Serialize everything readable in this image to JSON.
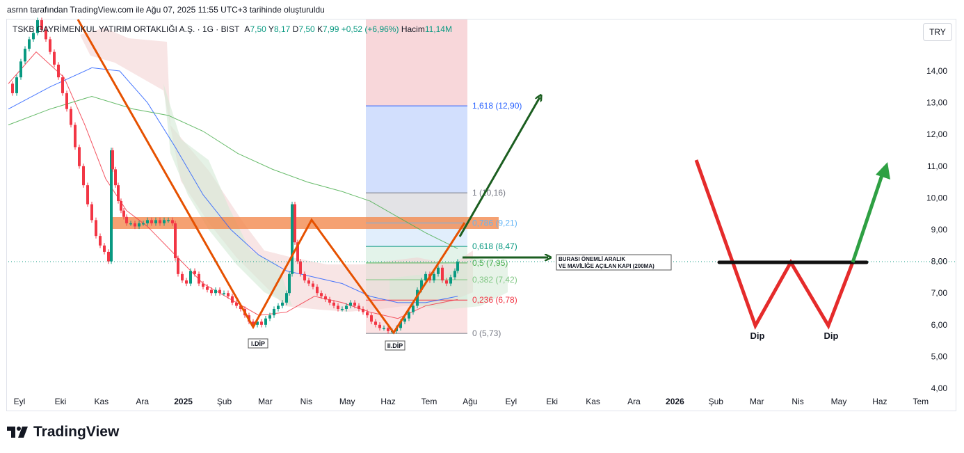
{
  "caption": "asrnn tarafından TradingView.com ile Ağu 07, 2025 11:55 UTC+3 tarihinde oluşturuldu",
  "symbol": {
    "name": "TSKB GAYRİMENKUL YATIRIM ORTAKLIĞI A.Ş. · 1G · BIST",
    "open_label": "A",
    "open": "7,50",
    "high_label": "Y",
    "high": "8,17",
    "low_label": "D",
    "low": "7,50",
    "close_label": "K",
    "close": "7,99",
    "change": "+0,52 (+6,96%)",
    "volume_label": "Hacim",
    "volume": "11,14M"
  },
  "currency": "TRY",
  "logo_text": "TradingView",
  "chart_data": {
    "type": "line",
    "y_axis": {
      "ticks": [
        "14,00",
        "13,00",
        "12,00",
        "11,00",
        "10,00",
        "9,00",
        "8,00",
        "7,00",
        "6,00",
        "5,00",
        "4,00"
      ],
      "tick_values": [
        14,
        13,
        12,
        11,
        10,
        9,
        8,
        7,
        6,
        5,
        4
      ],
      "position": "right"
    },
    "x_axis": {
      "ticks": [
        "Eyl",
        "Eki",
        "Kas",
        "Ara",
        "2025",
        "Şub",
        "Mar",
        "Nis",
        "May",
        "Haz",
        "Tem",
        "Ağu",
        "Eyl",
        "Eki",
        "Kas",
        "Ara",
        "2026",
        "Şub",
        "Mar",
        "Nis",
        "May",
        "Haz",
        "Tem"
      ],
      "bold": [
        "2025",
        "2026"
      ]
    },
    "last_price": 7.99,
    "fibonacci": [
      {
        "label": "1,618 (12,90)",
        "value": 12.9,
        "color": "#2962ff"
      },
      {
        "label": "1 (10,16)",
        "value": 10.16,
        "color": "#787b86"
      },
      {
        "label": "0,786 (9,21)",
        "value": 9.21,
        "color": "#64b5f6"
      },
      {
        "label": "0,618 (8,47)",
        "value": 8.47,
        "color": "#089981"
      },
      {
        "label": "0,5 (7,95)",
        "value": 7.95,
        "color": "#4caf50"
      },
      {
        "label": "0,382 (7,42)",
        "value": 7.42,
        "color": "#81c784"
      },
      {
        "label": "0,236 (6,78)",
        "value": 6.78,
        "color": "#f23645"
      },
      {
        "label": "0 (5,73)",
        "value": 5.73,
        "color": "#787b86"
      }
    ],
    "resistance_zone": {
      "from": 9.1,
      "to": 9.4,
      "color": "#f28a4f"
    },
    "annotations": {
      "first_bottom": "I.DİP",
      "second_bottom": "II.DİP",
      "note_line1": "BURASI ÖNEMLİ ARALIK",
      "note_line2": "VE MAVİLİĞE AÇILAN KAPI (200MA)",
      "w_dip1": "Dip",
      "w_dip2": "Dip"
    },
    "price_path": [
      [
        0,
        13.6
      ],
      [
        6,
        13.3
      ],
      [
        12,
        13.8
      ],
      [
        18,
        14.3
      ],
      [
        24,
        14.7
      ],
      [
        30,
        15.0
      ],
      [
        36,
        15.2
      ],
      [
        42,
        15.6
      ],
      [
        48,
        15.3
      ],
      [
        54,
        15.0
      ],
      [
        60,
        14.6
      ],
      [
        66,
        14.2
      ],
      [
        72,
        13.8
      ],
      [
        78,
        13.3
      ],
      [
        84,
        12.8
      ],
      [
        90,
        12.3
      ],
      [
        96,
        11.6
      ],
      [
        102,
        11.0
      ],
      [
        108,
        10.4
      ],
      [
        114,
        9.8
      ],
      [
        120,
        9.3
      ],
      [
        126,
        8.8
      ],
      [
        132,
        8.5
      ],
      [
        138,
        8.3
      ],
      [
        144,
        8.0
      ],
      [
        148,
        11.5
      ],
      [
        150,
        10.9
      ],
      [
        154,
        10.4
      ],
      [
        158,
        9.9
      ],
      [
        162,
        9.6
      ],
      [
        166,
        9.4
      ],
      [
        170,
        9.2
      ],
      [
        176,
        9.2
      ],
      [
        182,
        9.1
      ],
      [
        188,
        9.2
      ],
      [
        194,
        9.2
      ],
      [
        200,
        9.3
      ],
      [
        206,
        9.2
      ],
      [
        212,
        9.3
      ],
      [
        218,
        9.2
      ],
      [
        224,
        9.3
      ],
      [
        230,
        9.3
      ],
      [
        236,
        9.2
      ],
      [
        240,
        8.1
      ],
      [
        244,
        7.6
      ],
      [
        250,
        7.4
      ],
      [
        256,
        7.3
      ],
      [
        262,
        7.7
      ],
      [
        268,
        7.6
      ],
      [
        274,
        7.3
      ],
      [
        280,
        7.2
      ],
      [
        286,
        7.1
      ],
      [
        292,
        7.0
      ],
      [
        298,
        7.1
      ],
      [
        304,
        7.0
      ],
      [
        310,
        7.0
      ],
      [
        316,
        6.9
      ],
      [
        322,
        6.7
      ],
      [
        328,
        6.6
      ],
      [
        334,
        6.5
      ],
      [
        340,
        6.3
      ],
      [
        346,
        6.1
      ],
      [
        352,
        6.0
      ],
      [
        358,
        6.1
      ],
      [
        364,
        6.0
      ],
      [
        370,
        6.2
      ],
      [
        376,
        6.3
      ],
      [
        382,
        6.5
      ],
      [
        388,
        6.6
      ],
      [
        394,
        6.7
      ],
      [
        400,
        7.0
      ],
      [
        404,
        7.6
      ],
      [
        408,
        9.8
      ],
      [
        412,
        8.6
      ],
      [
        416,
        8.0
      ],
      [
        420,
        7.6
      ],
      [
        426,
        7.4
      ],
      [
        432,
        7.3
      ],
      [
        438,
        7.2
      ],
      [
        444,
        7.0
      ],
      [
        450,
        6.9
      ],
      [
        456,
        6.8
      ],
      [
        462,
        6.7
      ],
      [
        468,
        6.6
      ],
      [
        474,
        6.5
      ],
      [
        480,
        6.5
      ],
      [
        486,
        6.6
      ],
      [
        492,
        6.7
      ],
      [
        498,
        6.6
      ],
      [
        504,
        6.5
      ],
      [
        510,
        6.4
      ],
      [
        516,
        6.3
      ],
      [
        522,
        6.1
      ],
      [
        528,
        6.0
      ],
      [
        534,
        5.9
      ],
      [
        540,
        5.9
      ],
      [
        546,
        5.8
      ],
      [
        552,
        5.8
      ],
      [
        558,
        5.9
      ],
      [
        564,
        6.1
      ],
      [
        570,
        6.2
      ],
      [
        576,
        6.4
      ],
      [
        582,
        6.6
      ],
      [
        588,
        7.1
      ],
      [
        594,
        7.4
      ],
      [
        600,
        7.6
      ],
      [
        606,
        7.4
      ],
      [
        612,
        7.6
      ],
      [
        618,
        7.8
      ],
      [
        624,
        7.4
      ],
      [
        630,
        7.3
      ],
      [
        636,
        7.5
      ],
      [
        642,
        7.7
      ],
      [
        646,
        7.99
      ]
    ],
    "ma_series": [
      {
        "name": "",
        "color": "#f23645",
        "points": [
          [
            0,
            13.6
          ],
          [
            40,
            14.6
          ],
          [
            80,
            13.8
          ],
          [
            110,
            12.3
          ],
          [
            140,
            10.6
          ],
          [
            170,
            9.6
          ],
          [
            200,
            9.1
          ],
          [
            240,
            8.2
          ],
          [
            280,
            7.3
          ],
          [
            320,
            6.8
          ],
          [
            360,
            6.3
          ],
          [
            400,
            6.4
          ],
          [
            440,
            6.9
          ],
          [
            480,
            6.7
          ],
          [
            520,
            6.4
          ],
          [
            560,
            6.2
          ],
          [
            600,
            6.6
          ],
          [
            646,
            6.8
          ]
        ]
      },
      {
        "name": "",
        "color": "#2962ff",
        "points": [
          [
            0,
            12.8
          ],
          [
            60,
            13.5
          ],
          [
            120,
            14.1
          ],
          [
            160,
            14.0
          ],
          [
            200,
            13.0
          ],
          [
            240,
            11.6
          ],
          [
            280,
            10.1
          ],
          [
            320,
            9.0
          ],
          [
            360,
            8.2
          ],
          [
            400,
            7.7
          ],
          [
            440,
            7.5
          ],
          [
            480,
            7.3
          ],
          [
            520,
            6.9
          ],
          [
            560,
            6.7
          ],
          [
            600,
            6.7
          ],
          [
            646,
            6.9
          ]
        ]
      },
      {
        "name": "",
        "color": "#4caf50",
        "points": [
          [
            0,
            12.3
          ],
          [
            60,
            12.8
          ],
          [
            120,
            13.2
          ],
          [
            180,
            12.8
          ],
          [
            230,
            12.6
          ],
          [
            280,
            12.1
          ],
          [
            330,
            11.4
          ],
          [
            380,
            10.9
          ],
          [
            430,
            10.5
          ],
          [
            480,
            10.2
          ],
          [
            520,
            9.9
          ],
          [
            560,
            9.4
          ],
          [
            600,
            8.9
          ],
          [
            646,
            8.4
          ]
        ]
      }
    ],
    "legend": "none",
    "grid": false
  }
}
